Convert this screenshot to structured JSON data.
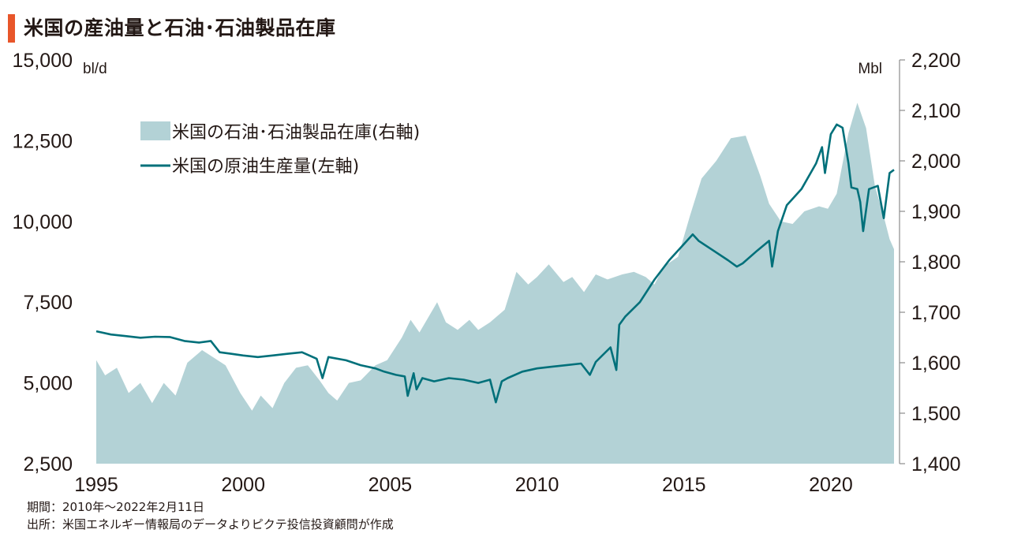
{
  "title": "米国の産油量と石油･石油製品在庫",
  "colors": {
    "accent": "#E8562A",
    "inventory_fill": "#B3D2D6",
    "production_line": "#00707A",
    "axis": "#8C8C8C",
    "text": "#231815"
  },
  "chart_data": {
    "type": "area",
    "x_ticks": [
      "1995",
      "2000",
      "2005",
      "2010",
      "2015",
      "2020"
    ],
    "xlim": [
      1995,
      2022.15
    ],
    "y_left": {
      "unit": "bl/d",
      "lim": [
        2500,
        15000
      ],
      "ticks": [
        "2,500",
        "5,000",
        "7,500",
        "10,000",
        "12,500",
        "15,000"
      ],
      "tick_values": [
        2500,
        5000,
        7500,
        10000,
        12500,
        15000
      ]
    },
    "y_right": {
      "unit": "Mbl",
      "lim": [
        1400,
        2200
      ],
      "ticks": [
        "1,400",
        "1,500",
        "1,600",
        "1,700",
        "1,800",
        "1,900",
        "2,000",
        "2,100",
        "2,200"
      ],
      "tick_values": [
        1400,
        1500,
        1600,
        1700,
        1800,
        1900,
        2000,
        2100,
        2200
      ]
    },
    "legend": {
      "placement": "top-left"
    },
    "series": [
      {
        "name": "米国の石油･石油製品在庫(右軸)",
        "kind": "area",
        "axis": "right",
        "points": [
          [
            1995.0,
            1605
          ],
          [
            1995.3,
            1575
          ],
          [
            1995.7,
            1590
          ],
          [
            1996.1,
            1540
          ],
          [
            1996.5,
            1560
          ],
          [
            1996.9,
            1520
          ],
          [
            1997.3,
            1560
          ],
          [
            1997.7,
            1535
          ],
          [
            1998.1,
            1600
          ],
          [
            1998.6,
            1625
          ],
          [
            1999.0,
            1610
          ],
          [
            1999.4,
            1595
          ],
          [
            1999.9,
            1540
          ],
          [
            2000.3,
            1505
          ],
          [
            2000.6,
            1535
          ],
          [
            2001.0,
            1510
          ],
          [
            2001.4,
            1560
          ],
          [
            2001.8,
            1590
          ],
          [
            2002.2,
            1595
          ],
          [
            2002.6,
            1565
          ],
          [
            2002.9,
            1540
          ],
          [
            2003.2,
            1525
          ],
          [
            2003.6,
            1560
          ],
          [
            2004.0,
            1565
          ],
          [
            2004.5,
            1595
          ],
          [
            2004.9,
            1605
          ],
          [
            2005.4,
            1650
          ],
          [
            2005.7,
            1685
          ],
          [
            2006.0,
            1660
          ],
          [
            2006.6,
            1720
          ],
          [
            2006.9,
            1680
          ],
          [
            2007.3,
            1665
          ],
          [
            2007.7,
            1685
          ],
          [
            2008.0,
            1665
          ],
          [
            2008.4,
            1680
          ],
          [
            2008.9,
            1705
          ],
          [
            2009.3,
            1780
          ],
          [
            2009.7,
            1755
          ],
          [
            2010.0,
            1770
          ],
          [
            2010.4,
            1795
          ],
          [
            2010.9,
            1760
          ],
          [
            2011.2,
            1770
          ],
          [
            2011.6,
            1740
          ],
          [
            2012.0,
            1775
          ],
          [
            2012.4,
            1765
          ],
          [
            2012.9,
            1775
          ],
          [
            2013.3,
            1780
          ],
          [
            2013.7,
            1770
          ],
          [
            2014.0,
            1755
          ],
          [
            2014.3,
            1790
          ],
          [
            2014.8,
            1810
          ],
          [
            2015.2,
            1890
          ],
          [
            2015.6,
            1965
          ],
          [
            2016.1,
            2000
          ],
          [
            2016.6,
            2045
          ],
          [
            2017.1,
            2050
          ],
          [
            2017.6,
            1970
          ],
          [
            2017.9,
            1915
          ],
          [
            2018.3,
            1880
          ],
          [
            2018.7,
            1875
          ],
          [
            2019.1,
            1900
          ],
          [
            2019.6,
            1910
          ],
          [
            2019.9,
            1905
          ],
          [
            2020.2,
            1935
          ],
          [
            2020.6,
            2055
          ],
          [
            2020.9,
            2115
          ],
          [
            2021.2,
            2065
          ],
          [
            2021.5,
            1950
          ],
          [
            2021.8,
            1890
          ],
          [
            2022.0,
            1845
          ],
          [
            2022.15,
            1825
          ]
        ]
      },
      {
        "name": "米国の原油生産量(左軸)",
        "kind": "line",
        "axis": "left",
        "points": [
          [
            1995.0,
            6600
          ],
          [
            1995.5,
            6500
          ],
          [
            1996.0,
            6450
          ],
          [
            1996.5,
            6400
          ],
          [
            1997.0,
            6430
          ],
          [
            1997.5,
            6420
          ],
          [
            1998.0,
            6300
          ],
          [
            1998.5,
            6250
          ],
          [
            1998.9,
            6300
          ],
          [
            1999.2,
            5950
          ],
          [
            1999.6,
            5900
          ],
          [
            2000.0,
            5850
          ],
          [
            2000.5,
            5800
          ],
          [
            2001.0,
            5850
          ],
          [
            2001.5,
            5900
          ],
          [
            2002.0,
            5950
          ],
          [
            2002.5,
            5750
          ],
          [
            2002.7,
            5150
          ],
          [
            2002.9,
            5800
          ],
          [
            2003.5,
            5700
          ],
          [
            2004.0,
            5550
          ],
          [
            2004.5,
            5450
          ],
          [
            2004.8,
            5350
          ],
          [
            2005.2,
            5250
          ],
          [
            2005.5,
            5200
          ],
          [
            2005.6,
            4600
          ],
          [
            2005.8,
            5300
          ],
          [
            2005.9,
            4800
          ],
          [
            2006.1,
            5150
          ],
          [
            2006.5,
            5050
          ],
          [
            2007.0,
            5150
          ],
          [
            2007.5,
            5100
          ],
          [
            2008.0,
            5000
          ],
          [
            2008.4,
            5100
          ],
          [
            2008.6,
            4400
          ],
          [
            2008.8,
            5050
          ],
          [
            2009.0,
            5150
          ],
          [
            2009.5,
            5350
          ],
          [
            2010.0,
            5450
          ],
          [
            2010.5,
            5500
          ],
          [
            2011.0,
            5550
          ],
          [
            2011.5,
            5600
          ],
          [
            2011.8,
            5250
          ],
          [
            2012.0,
            5650
          ],
          [
            2012.5,
            6100
          ],
          [
            2012.7,
            5400
          ],
          [
            2012.8,
            6800
          ],
          [
            2013.0,
            7050
          ],
          [
            2013.5,
            7500
          ],
          [
            2014.0,
            8200
          ],
          [
            2014.5,
            8800
          ],
          [
            2015.0,
            9300
          ],
          [
            2015.3,
            9600
          ],
          [
            2015.5,
            9400
          ],
          [
            2016.0,
            9100
          ],
          [
            2016.5,
            8800
          ],
          [
            2016.8,
            8600
          ],
          [
            2017.0,
            8700
          ],
          [
            2017.5,
            9100
          ],
          [
            2017.9,
            9400
          ],
          [
            2018.0,
            8600
          ],
          [
            2018.2,
            9700
          ],
          [
            2018.5,
            10500
          ],
          [
            2019.0,
            11000
          ],
          [
            2019.5,
            11800
          ],
          [
            2019.7,
            12300
          ],
          [
            2019.8,
            11500
          ],
          [
            2020.0,
            12700
          ],
          [
            2020.2,
            13000
          ],
          [
            2020.4,
            12900
          ],
          [
            2020.6,
            11800
          ],
          [
            2020.7,
            11050
          ],
          [
            2020.9,
            11000
          ],
          [
            2021.0,
            10600
          ],
          [
            2021.1,
            9700
          ],
          [
            2021.3,
            11000
          ],
          [
            2021.6,
            11100
          ],
          [
            2021.8,
            10100
          ],
          [
            2022.0,
            11500
          ],
          [
            2022.15,
            11600
          ]
        ]
      }
    ]
  },
  "footer": {
    "period": "期間：2010年～2022年2月11日",
    "source": "出所：米国エネルギー情報局のデータよりピクテ投信投資顧問が作成"
  }
}
